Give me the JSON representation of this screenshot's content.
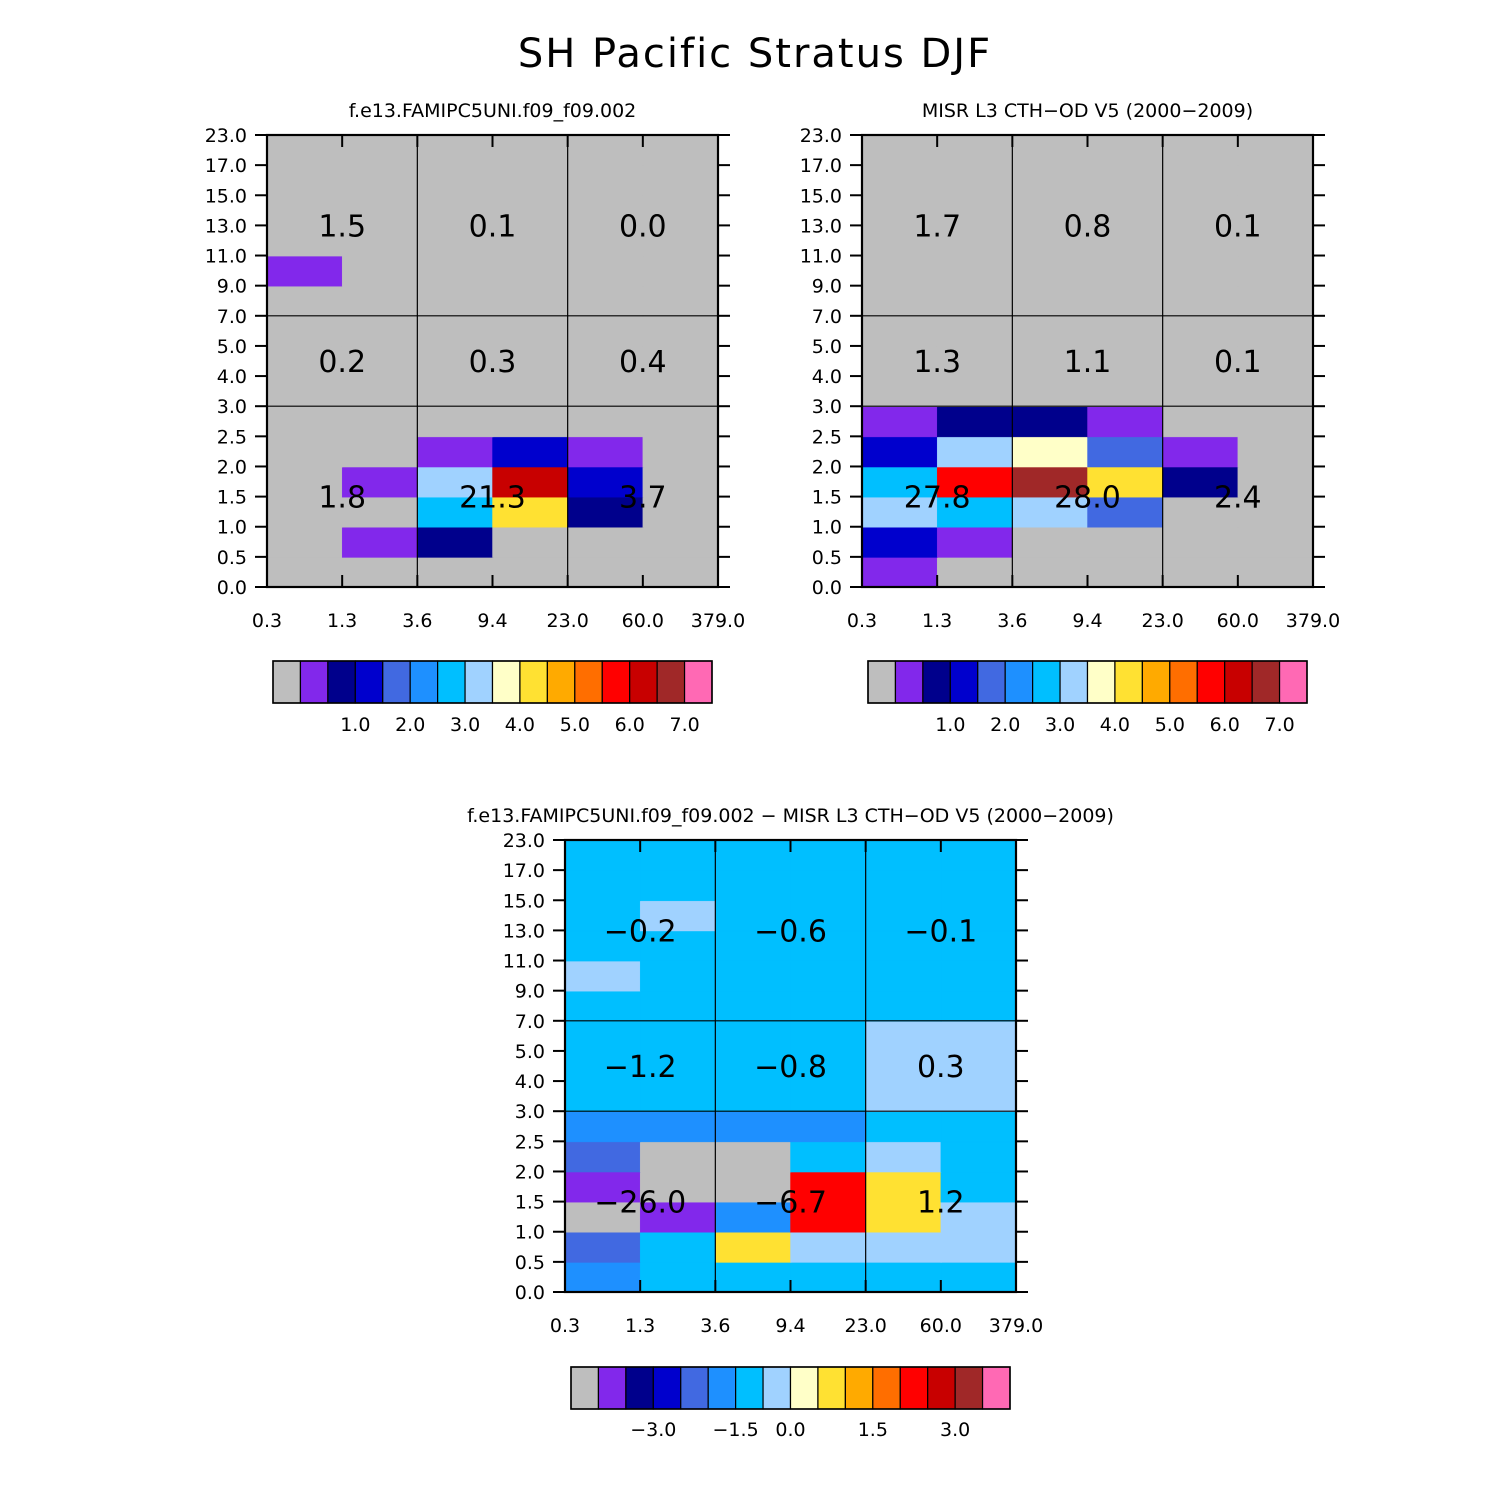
{
  "figure_title": "SH Pacific Stratus DJF",
  "colors": {
    "background": "#ffffff",
    "palette": [
      "#bebebe",
      "#8228eb",
      "#00008c",
      "#0000cd",
      "#4169e1",
      "#1e90ff",
      "#00bfff",
      "#a0d2ff",
      "#ffffc8",
      "#ffe132",
      "#ffaa00",
      "#ff6e00",
      "#ff0000",
      "#c80000",
      "#a02828",
      "#ff69b4"
    ]
  },
  "chart_data": [
    {
      "type": "heatmap",
      "title": "f.e13.FAMIPC5UNI.f09_f09.002",
      "x_ticks": [
        "0.3",
        "1.3",
        "3.6",
        "9.4",
        "23.0",
        "60.0",
        "379.0"
      ],
      "y_ticks": [
        "0.0",
        "0.5",
        "1.0",
        "1.5",
        "2.0",
        "2.5",
        "3.0",
        "4.0",
        "5.0",
        "7.0",
        "9.0",
        "11.0",
        "13.0",
        "15.0",
        "17.0",
        "23.0"
      ],
      "x_bins": [
        [
          0.3,
          1.3
        ],
        [
          1.3,
          3.6
        ],
        [
          3.6,
          9.4
        ],
        [
          9.4,
          23.0
        ],
        [
          23.0,
          60.0
        ],
        [
          60.0,
          379.0
        ]
      ],
      "y_bins": [
        [
          0,
          0.5
        ],
        [
          0.5,
          1.0
        ],
        [
          1.0,
          1.5
        ],
        [
          1.5,
          2.0
        ],
        [
          2.0,
          2.5
        ],
        [
          2.5,
          3.0
        ],
        [
          3.0,
          4.0
        ],
        [
          4.0,
          5.0
        ],
        [
          5.0,
          7.0
        ],
        [
          7.0,
          9.0
        ],
        [
          9.0,
          11.0
        ],
        [
          11.0,
          13.0
        ],
        [
          13.0,
          15.0
        ],
        [
          15.0,
          17.0
        ],
        [
          17.0,
          23.0
        ]
      ],
      "values_note": "rows = y bins (bottom to top), columns = x bins (left to right); values are color-class representatives",
      "values": [
        [
          0,
          0,
          0,
          0,
          0,
          0
        ],
        [
          0,
          0.75,
          1.25,
          0,
          0,
          0
        ],
        [
          0,
          0,
          3.25,
          4.75,
          1.25,
          0
        ],
        [
          0,
          0.75,
          3.75,
          6.75,
          1.75,
          0
        ],
        [
          0,
          0,
          0.75,
          1.75,
          0.75,
          0
        ],
        [
          0,
          0,
          0,
          0,
          0,
          0
        ],
        [
          0,
          0,
          0,
          0,
          0,
          0
        ],
        [
          0,
          0,
          0,
          0,
          0,
          0
        ],
        [
          0,
          0,
          0,
          0,
          0,
          0
        ],
        [
          0,
          0,
          0,
          0,
          0,
          0
        ],
        [
          0.75,
          0,
          0,
          0,
          0,
          0
        ],
        [
          0,
          0,
          0,
          0,
          0,
          0
        ],
        [
          0,
          0,
          0,
          0,
          0,
          0
        ],
        [
          0,
          0,
          0,
          0,
          0,
          0
        ],
        [
          0,
          0,
          0,
          0,
          0,
          0
        ]
      ],
      "box_labels": [
        {
          "x_range": [
            0.3,
            3.6
          ],
          "y_range": [
            0,
            3.0
          ],
          "text": "1.8"
        },
        {
          "x_range": [
            3.6,
            23.0
          ],
          "y_range": [
            0,
            3.0
          ],
          "text": "21.3"
        },
        {
          "x_range": [
            23.0,
            379.0
          ],
          "y_range": [
            0,
            3.0
          ],
          "text": "3.7"
        },
        {
          "x_range": [
            0.3,
            3.6
          ],
          "y_range": [
            3.0,
            7.0
          ],
          "text": "0.2"
        },
        {
          "x_range": [
            3.6,
            23.0
          ],
          "y_range": [
            3.0,
            7.0
          ],
          "text": "0.3"
        },
        {
          "x_range": [
            23.0,
            379.0
          ],
          "y_range": [
            3.0,
            7.0
          ],
          "text": "0.4"
        },
        {
          "x_range": [
            0.3,
            3.6
          ],
          "y_range": [
            7.0,
            23.0
          ],
          "text": "1.5"
        },
        {
          "x_range": [
            3.6,
            23.0
          ],
          "y_range": [
            7.0,
            23.0
          ],
          "text": "0.1"
        },
        {
          "x_range": [
            23.0,
            379.0
          ],
          "y_range": [
            7.0,
            23.0
          ],
          "text": "0.0"
        }
      ],
      "colorbar": {
        "levels": [
          0.5,
          1.0,
          1.5,
          2.0,
          2.5,
          3.0,
          3.5,
          4.0,
          4.5,
          5.0,
          5.5,
          6.0,
          6.5,
          7.0
        ],
        "labels": [
          "1.0",
          "2.0",
          "3.0",
          "4.0",
          "5.0",
          "6.0",
          "7.0"
        ]
      }
    },
    {
      "type": "heatmap",
      "title": "MISR L3 CTH-OD V5 (2000-2009)",
      "x_ticks": [
        "0.3",
        "1.3",
        "3.6",
        "9.4",
        "23.0",
        "60.0",
        "379.0"
      ],
      "y_ticks": [
        "0.0",
        "0.5",
        "1.0",
        "1.5",
        "2.0",
        "2.5",
        "3.0",
        "4.0",
        "5.0",
        "7.0",
        "9.0",
        "11.0",
        "13.0",
        "15.0",
        "17.0",
        "23.0"
      ],
      "x_bins": [
        [
          0.3,
          1.3
        ],
        [
          1.3,
          3.6
        ],
        [
          3.6,
          9.4
        ],
        [
          9.4,
          23.0
        ],
        [
          23.0,
          60.0
        ],
        [
          60.0,
          379.0
        ]
      ],
      "y_bins": [
        [
          0,
          0.5
        ],
        [
          0.5,
          1.0
        ],
        [
          1.0,
          1.5
        ],
        [
          1.5,
          2.0
        ],
        [
          2.0,
          2.5
        ],
        [
          2.5,
          3.0
        ],
        [
          3.0,
          4.0
        ],
        [
          4.0,
          5.0
        ],
        [
          5.0,
          7.0
        ],
        [
          7.0,
          9.0
        ],
        [
          9.0,
          11.0
        ],
        [
          11.0,
          13.0
        ],
        [
          13.0,
          15.0
        ],
        [
          15.0,
          17.0
        ],
        [
          17.0,
          23.0
        ]
      ],
      "values_note": "rows = y bins (bottom to top), columns = x bins (left to right); values are color-class representatives",
      "values": [
        [
          0.75,
          0,
          0,
          0,
          0,
          0
        ],
        [
          1.75,
          0.75,
          0,
          0,
          0,
          0
        ],
        [
          3.75,
          3.25,
          3.75,
          2.25,
          0,
          0
        ],
        [
          3.25,
          6.25,
          7.25,
          4.75,
          1.25,
          0
        ],
        [
          1.75,
          3.75,
          4.25,
          2.25,
          0.75,
          0
        ],
        [
          0.75,
          1.25,
          1.25,
          0.75,
          0,
          0
        ],
        [
          0,
          0,
          0,
          0,
          0,
          0
        ],
        [
          0,
          0,
          0,
          0,
          0,
          0
        ],
        [
          0,
          0,
          0,
          0,
          0,
          0
        ],
        [
          0,
          0,
          0,
          0,
          0,
          0
        ],
        [
          0,
          0,
          0,
          0,
          0,
          0
        ],
        [
          0,
          0,
          0,
          0,
          0,
          0
        ],
        [
          0,
          0,
          0,
          0,
          0,
          0
        ],
        [
          0,
          0,
          0,
          0,
          0,
          0
        ],
        [
          0,
          0,
          0,
          0,
          0,
          0
        ]
      ],
      "box_labels": [
        {
          "x_range": [
            0.3,
            3.6
          ],
          "y_range": [
            0,
            3.0
          ],
          "text": "27.8"
        },
        {
          "x_range": [
            3.6,
            23.0
          ],
          "y_range": [
            0,
            3.0
          ],
          "text": "28.0"
        },
        {
          "x_range": [
            23.0,
            379.0
          ],
          "y_range": [
            0,
            3.0
          ],
          "text": "2.4"
        },
        {
          "x_range": [
            0.3,
            3.6
          ],
          "y_range": [
            3.0,
            7.0
          ],
          "text": "1.3"
        },
        {
          "x_range": [
            3.6,
            23.0
          ],
          "y_range": [
            3.0,
            7.0
          ],
          "text": "1.1"
        },
        {
          "x_range": [
            23.0,
            379.0
          ],
          "y_range": [
            3.0,
            7.0
          ],
          "text": "0.1"
        },
        {
          "x_range": [
            0.3,
            3.6
          ],
          "y_range": [
            7.0,
            23.0
          ],
          "text": "1.7"
        },
        {
          "x_range": [
            3.6,
            23.0
          ],
          "y_range": [
            7.0,
            23.0
          ],
          "text": "0.8"
        },
        {
          "x_range": [
            23.0,
            379.0
          ],
          "y_range": [
            7.0,
            23.0
          ],
          "text": "0.1"
        }
      ],
      "colorbar": {
        "levels": [
          0.5,
          1.0,
          1.5,
          2.0,
          2.5,
          3.0,
          3.5,
          4.0,
          4.5,
          5.0,
          5.5,
          6.0,
          6.5,
          7.0
        ],
        "labels": [
          "1.0",
          "2.0",
          "3.0",
          "4.0",
          "5.0",
          "6.0",
          "7.0"
        ]
      }
    },
    {
      "type": "heatmap",
      "title": "f.e13.FAMIPC5UNI.f09_f09.002 - MISR L3 CTH-OD V5 (2000-2009)",
      "x_ticks": [
        "0.3",
        "1.3",
        "3.6",
        "9.4",
        "23.0",
        "60.0",
        "379.0"
      ],
      "y_ticks": [
        "0.0",
        "0.5",
        "1.0",
        "1.5",
        "2.0",
        "2.5",
        "3.0",
        "4.0",
        "5.0",
        "7.0",
        "9.0",
        "11.0",
        "13.0",
        "15.0",
        "17.0",
        "23.0"
      ],
      "x_bins": [
        [
          0.3,
          1.3
        ],
        [
          1.3,
          3.6
        ],
        [
          3.6,
          9.4
        ],
        [
          9.4,
          23.0
        ],
        [
          23.0,
          60.0
        ],
        [
          60.0,
          379.0
        ]
      ],
      "y_bins": [
        [
          0,
          0.5
        ],
        [
          0.5,
          1.0
        ],
        [
          1.0,
          1.5
        ],
        [
          1.5,
          2.0
        ],
        [
          2.0,
          2.5
        ],
        [
          2.5,
          3.0
        ],
        [
          3.0,
          4.0
        ],
        [
          4.0,
          5.0
        ],
        [
          5.0,
          7.0
        ],
        [
          7.0,
          9.0
        ],
        [
          9.0,
          11.0
        ],
        [
          11.0,
          13.0
        ],
        [
          13.0,
          15.0
        ],
        [
          15.0,
          17.0
        ],
        [
          17.0,
          23.0
        ]
      ],
      "values_note": "rows = y bins (bottom to top), columns = x bins (left to right); values are color-class representatives",
      "values": [
        [
          -0.6,
          -0.2,
          -0.2,
          -0.2,
          -0.2,
          -0.2
        ],
        [
          -2.0,
          -0.2,
          1.1,
          0.2,
          0.2,
          0.2
        ],
        [
          -4.0,
          -3.3,
          -1.0,
          2.9,
          1.1,
          0.2
        ],
        [
          -3.3,
          -4.0,
          -4.0,
          2.6,
          1.1,
          -0.2
        ],
        [
          -2.0,
          -4.0,
          -4.0,
          -0.2,
          0.2,
          -0.2
        ],
        [
          -0.6,
          -1.0,
          -1.0,
          -0.6,
          -0.2,
          -0.2
        ],
        [
          -0.2,
          -0.2,
          -0.2,
          -0.2,
          0.2,
          0.2
        ],
        [
          -0.2,
          -0.2,
          -0.2,
          -0.2,
          0.2,
          0.2
        ],
        [
          -0.2,
          -0.2,
          -0.2,
          -0.2,
          0.2,
          0.2
        ],
        [
          -0.2,
          -0.2,
          -0.2,
          -0.2,
          -0.2,
          -0.2
        ],
        [
          0.2,
          -0.2,
          -0.2,
          -0.2,
          -0.2,
          -0.2
        ],
        [
          -0.2,
          -0.2,
          -0.2,
          -0.2,
          -0.2,
          -0.2
        ],
        [
          -0.2,
          0.2,
          -0.2,
          -0.2,
          -0.2,
          -0.2
        ],
        [
          -0.2,
          -0.2,
          -0.2,
          -0.2,
          -0.2,
          -0.2
        ],
        [
          -0.2,
          -0.2,
          -0.2,
          -0.2,
          -0.2,
          -0.2
        ]
      ],
      "box_labels": [
        {
          "x_range": [
            0.3,
            3.6
          ],
          "y_range": [
            0,
            3.0
          ],
          "text": "-26.0"
        },
        {
          "x_range": [
            3.6,
            23.0
          ],
          "y_range": [
            0,
            3.0
          ],
          "text": "-6.7"
        },
        {
          "x_range": [
            23.0,
            379.0
          ],
          "y_range": [
            0,
            3.0
          ],
          "text": "1.2"
        },
        {
          "x_range": [
            0.3,
            3.6
          ],
          "y_range": [
            3.0,
            7.0
          ],
          "text": "-1.2"
        },
        {
          "x_range": [
            3.6,
            23.0
          ],
          "y_range": [
            3.0,
            7.0
          ],
          "text": "-0.8"
        },
        {
          "x_range": [
            23.0,
            379.0
          ],
          "y_range": [
            3.0,
            7.0
          ],
          "text": "0.3"
        },
        {
          "x_range": [
            0.3,
            3.6
          ],
          "y_range": [
            7.0,
            23.0
          ],
          "text": "-0.2"
        },
        {
          "x_range": [
            3.6,
            23.0
          ],
          "y_range": [
            7.0,
            23.0
          ],
          "text": "-0.6"
        },
        {
          "x_range": [
            23.0,
            379.0
          ],
          "y_range": [
            7.0,
            23.0
          ],
          "text": "-0.1"
        }
      ],
      "colorbar": {
        "levels": [
          -3.5,
          -3.0,
          -2.5,
          -2.0,
          -1.5,
          -0.5,
          0.0,
          0.5,
          1.0,
          1.5,
          2.0,
          2.5,
          3.0,
          3.5
        ],
        "labels": [
          "-3.0",
          "-1.5",
          "0.0",
          "1.5",
          "3.0"
        ]
      }
    }
  ]
}
